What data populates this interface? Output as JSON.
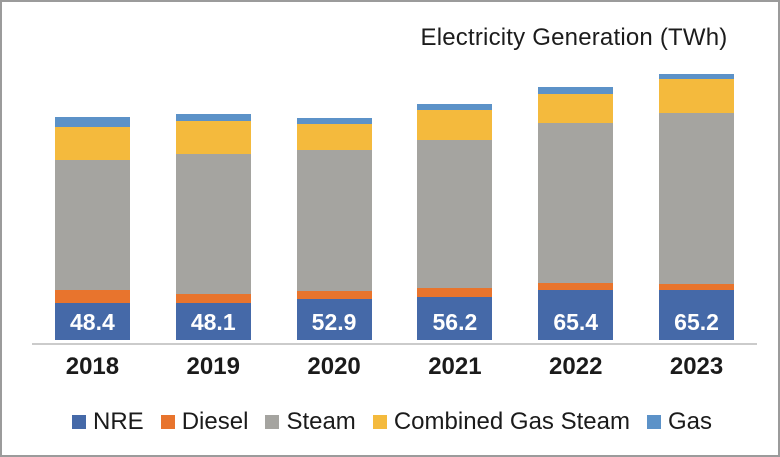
{
  "title": "Electricity Generation (TWh)",
  "frame": {
    "background": "#FFFFFF",
    "border_color": "#9B9B9B"
  },
  "chart_data": {
    "type": "bar",
    "variant": "stacked-column",
    "title": "Electricity Generation (TWh)",
    "unit": "TWh",
    "categories": [
      "2018",
      "2019",
      "2020",
      "2021",
      "2022",
      "2023"
    ],
    "series": [
      {
        "name": "NRE",
        "color": "#4569A8",
        "values": [
          48.4,
          48.1,
          52.9,
          56.2,
          65.4,
          65.2
        ]
      },
      {
        "name": "Diesel",
        "color": "#E8742D",
        "values": [
          17,
          11.5,
          11,
          11,
          8,
          8
        ]
      },
      {
        "name": "Steam",
        "color": "#A5A4A0",
        "values": [
          169,
          182,
          183,
          192,
          208,
          222
        ]
      },
      {
        "name": "Combined Gas Steam",
        "color": "#F4BA3D",
        "values": [
          42,
          43,
          34,
          39,
          38,
          44
        ]
      },
      {
        "name": "Gas",
        "color": "#5C92C8",
        "values": [
          13,
          9,
          7.5,
          9,
          9,
          6.5
        ]
      }
    ],
    "bar_value_labels": {
      "series": "NRE",
      "values": [
        "48.4",
        "48.1",
        "52.9",
        "56.2",
        "65.4",
        "65.2"
      ],
      "color": "#FFFFFF"
    },
    "legend": {
      "position": "bottom",
      "entries": [
        "NRE",
        "Diesel",
        "Steam",
        "Combined Gas Steam",
        "Gas"
      ]
    },
    "axes": {
      "y_axis_visible": false,
      "gridlines": false,
      "x_axis_line_color": "#CBCBCB",
      "x_tick_labels": [
        "2018",
        "2019",
        "2020",
        "2021",
        "2022",
        "2023"
      ]
    }
  }
}
